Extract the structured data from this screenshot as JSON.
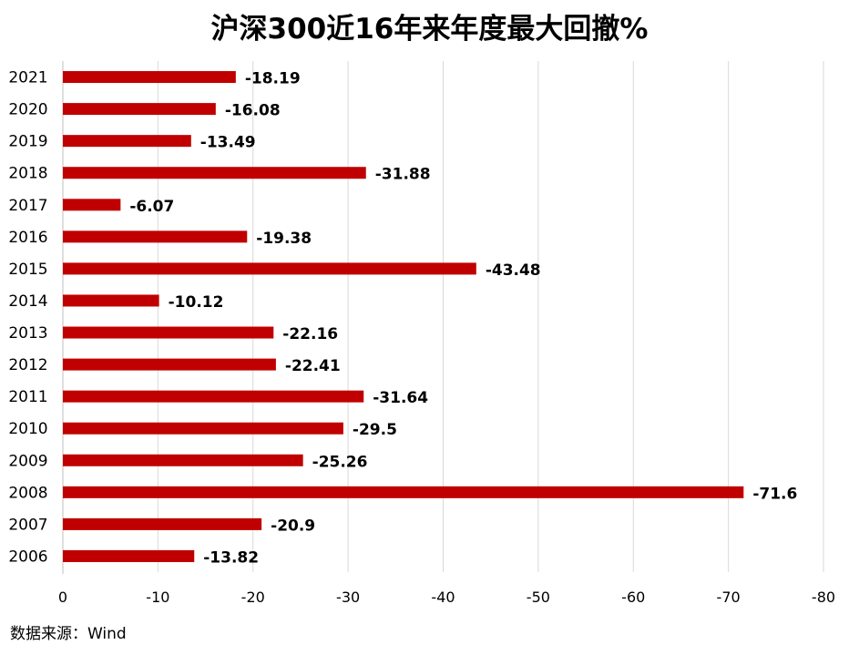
{
  "chart_data": {
    "type": "bar",
    "orientation": "horizontal",
    "title": "沪深300近16年来年度最大回撤%",
    "categories": [
      "2021",
      "2020",
      "2019",
      "2018",
      "2017",
      "2016",
      "2015",
      "2014",
      "2013",
      "2012",
      "2011",
      "2010",
      "2009",
      "2008",
      "2007",
      "2006"
    ],
    "values": [
      -18.19,
      -16.08,
      -13.49,
      -31.88,
      -6.07,
      -19.38,
      -43.48,
      -10.12,
      -22.16,
      -22.41,
      -31.64,
      -29.5,
      -25.26,
      -71.6,
      -20.9,
      -13.82
    ],
    "value_labels": [
      "-18.19",
      "-16.08",
      "-13.49",
      "-31.88",
      "-6.07",
      "-19.38",
      "-43.48",
      "-10.12",
      "-22.16",
      "-22.41",
      "-31.64",
      "-29.5",
      "-25.26",
      "-71.6",
      "-20.9",
      "-13.82"
    ],
    "xlim": [
      0,
      -80
    ],
    "xticks": [
      0,
      -10,
      -20,
      -30,
      -40,
      -50,
      -60,
      -70,
      -80
    ],
    "xtick_labels": [
      "0",
      "-10",
      "-20",
      "-30",
      "-40",
      "-50",
      "-60",
      "-70",
      "-80"
    ],
    "bar_color": "#c00000",
    "grid": "vertical"
  },
  "source": "数据来源：Wind"
}
